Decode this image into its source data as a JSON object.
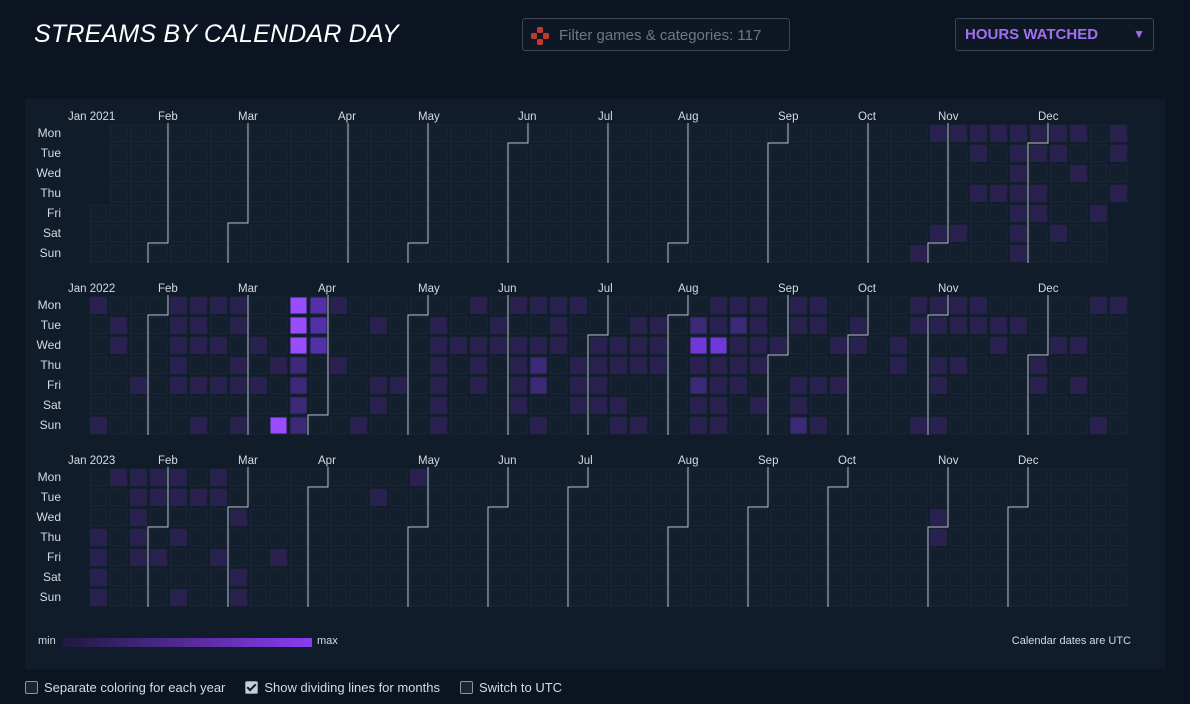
{
  "header": {
    "title": "STREAMS BY CALENDAR DAY",
    "filter_placeholder": "Filter games & categories: 117",
    "metric_select": "HOURS WATCHED",
    "filter_icon": "gamepad-icon"
  },
  "colors": {
    "empty": "#141f2d",
    "cell_border": "#1c2838",
    "scale_min": "#241c48",
    "scale_max": "#9a4cff",
    "accent": "#a070f0"
  },
  "chart_data": {
    "type": "heatmap",
    "title": "STREAMS BY CALENDAR DAY",
    "metric": "HOURS WATCHED",
    "value_scale": "levels 1 (min) to 5 (max), 0 = no stream",
    "weekdays": [
      "Mon",
      "Tue",
      "Wed",
      "Thu",
      "Fri",
      "Sat",
      "Sun"
    ],
    "years": [
      {
        "label": "2021",
        "months": [
          {
            "label": "Jan 2021",
            "week": 0
          },
          {
            "label": "Feb",
            "week": 4
          },
          {
            "label": "Mar",
            "week": 8
          },
          {
            "label": "Apr",
            "week": 13
          },
          {
            "label": "May",
            "week": 17
          },
          {
            "label": "Jun",
            "week": 22
          },
          {
            "label": "Jul",
            "week": 26
          },
          {
            "label": "Aug",
            "week": 30
          },
          {
            "label": "Sep",
            "week": 35
          },
          {
            "label": "Oct",
            "week": 39
          },
          {
            "label": "Nov",
            "week": 43
          },
          {
            "label": "Dec",
            "week": 48
          }
        ],
        "cells": [
          [
            42,
            0,
            1
          ],
          [
            43,
            0,
            1
          ],
          [
            44,
            0,
            1
          ],
          [
            45,
            0,
            1
          ],
          [
            46,
            0,
            1
          ],
          [
            47,
            0,
            1
          ],
          [
            48,
            0,
            1
          ],
          [
            49,
            0,
            1
          ],
          [
            51,
            0,
            1
          ],
          [
            44,
            1,
            1
          ],
          [
            46,
            1,
            1
          ],
          [
            47,
            1,
            1
          ],
          [
            48,
            1,
            1
          ],
          [
            51,
            1,
            1
          ],
          [
            46,
            2,
            1
          ],
          [
            49,
            2,
            1
          ],
          [
            44,
            3,
            1
          ],
          [
            45,
            3,
            1
          ],
          [
            46,
            3,
            1
          ],
          [
            47,
            3,
            1
          ],
          [
            51,
            3,
            1
          ],
          [
            46,
            4,
            1
          ],
          [
            47,
            4,
            1
          ],
          [
            50,
            4,
            1
          ],
          [
            42,
            5,
            1
          ],
          [
            43,
            5,
            1
          ],
          [
            46,
            5,
            1
          ],
          [
            48,
            5,
            1
          ],
          [
            41,
            6,
            1
          ],
          [
            46,
            6,
            1
          ]
        ]
      },
      {
        "label": "2022",
        "months": [
          {
            "label": "Jan 2022",
            "week": 0
          },
          {
            "label": "Feb",
            "week": 4
          },
          {
            "label": "Mar",
            "week": 8
          },
          {
            "label": "Apr",
            "week": 12
          },
          {
            "label": "May",
            "week": 17
          },
          {
            "label": "Jun",
            "week": 21
          },
          {
            "label": "Jul",
            "week": 26
          },
          {
            "label": "Aug",
            "week": 30
          },
          {
            "label": "Sep",
            "week": 35
          },
          {
            "label": "Oct",
            "week": 39
          },
          {
            "label": "Nov",
            "week": 43
          },
          {
            "label": "Dec",
            "week": 48
          }
        ],
        "cells": [
          [
            0,
            0,
            1
          ],
          [
            4,
            0,
            1
          ],
          [
            5,
            0,
            1
          ],
          [
            6,
            0,
            1
          ],
          [
            7,
            0,
            1
          ],
          [
            10,
            0,
            5
          ],
          [
            11,
            0,
            3
          ],
          [
            12,
            0,
            1
          ],
          [
            19,
            0,
            1
          ],
          [
            21,
            0,
            1
          ],
          [
            22,
            0,
            1
          ],
          [
            23,
            0,
            1
          ],
          [
            24,
            0,
            1
          ],
          [
            31,
            0,
            1
          ],
          [
            32,
            0,
            1
          ],
          [
            33,
            0,
            1
          ],
          [
            35,
            0,
            1
          ],
          [
            36,
            0,
            1
          ],
          [
            41,
            0,
            1
          ],
          [
            42,
            0,
            1
          ],
          [
            43,
            0,
            1
          ],
          [
            44,
            0,
            1
          ],
          [
            50,
            0,
            1
          ],
          [
            51,
            0,
            1
          ],
          [
            1,
            1,
            1
          ],
          [
            4,
            1,
            1
          ],
          [
            5,
            1,
            1
          ],
          [
            7,
            1,
            1
          ],
          [
            10,
            1,
            5
          ],
          [
            11,
            1,
            3
          ],
          [
            14,
            1,
            1
          ],
          [
            17,
            1,
            1
          ],
          [
            20,
            1,
            1
          ],
          [
            23,
            1,
            1
          ],
          [
            27,
            1,
            1
          ],
          [
            28,
            1,
            1
          ],
          [
            30,
            1,
            2
          ],
          [
            31,
            1,
            1
          ],
          [
            32,
            1,
            2
          ],
          [
            33,
            1,
            1
          ],
          [
            35,
            1,
            1
          ],
          [
            36,
            1,
            1
          ],
          [
            38,
            1,
            1
          ],
          [
            41,
            1,
            1
          ],
          [
            42,
            1,
            1
          ],
          [
            43,
            1,
            1
          ],
          [
            44,
            1,
            1
          ],
          [
            45,
            1,
            1
          ],
          [
            46,
            1,
            1
          ],
          [
            1,
            2,
            1
          ],
          [
            4,
            2,
            1
          ],
          [
            5,
            2,
            1
          ],
          [
            6,
            2,
            1
          ],
          [
            8,
            2,
            1
          ],
          [
            10,
            2,
            5
          ],
          [
            11,
            2,
            3
          ],
          [
            17,
            2,
            1
          ],
          [
            18,
            2,
            1
          ],
          [
            19,
            2,
            1
          ],
          [
            20,
            2,
            1
          ],
          [
            21,
            2,
            1
          ],
          [
            22,
            2,
            1
          ],
          [
            23,
            2,
            1
          ],
          [
            25,
            2,
            1
          ],
          [
            26,
            2,
            1
          ],
          [
            27,
            2,
            1
          ],
          [
            28,
            2,
            1
          ],
          [
            30,
            2,
            4
          ],
          [
            31,
            2,
            4
          ],
          [
            32,
            2,
            1
          ],
          [
            33,
            2,
            1
          ],
          [
            34,
            2,
            1
          ],
          [
            37,
            2,
            1
          ],
          [
            38,
            2,
            1
          ],
          [
            40,
            2,
            1
          ],
          [
            45,
            2,
            1
          ],
          [
            48,
            2,
            1
          ],
          [
            49,
            2,
            1
          ],
          [
            4,
            3,
            1
          ],
          [
            7,
            3,
            1
          ],
          [
            9,
            3,
            1
          ],
          [
            10,
            3,
            2
          ],
          [
            12,
            3,
            1
          ],
          [
            17,
            3,
            1
          ],
          [
            19,
            3,
            1
          ],
          [
            21,
            3,
            1
          ],
          [
            22,
            3,
            2
          ],
          [
            24,
            3,
            1
          ],
          [
            25,
            3,
            1
          ],
          [
            26,
            3,
            1
          ],
          [
            27,
            3,
            1
          ],
          [
            28,
            3,
            1
          ],
          [
            30,
            3,
            1
          ],
          [
            31,
            3,
            1
          ],
          [
            32,
            3,
            1
          ],
          [
            33,
            3,
            1
          ],
          [
            40,
            3,
            1
          ],
          [
            42,
            3,
            1
          ],
          [
            43,
            3,
            1
          ],
          [
            47,
            3,
            1
          ],
          [
            2,
            4,
            1
          ],
          [
            4,
            4,
            1
          ],
          [
            5,
            4,
            1
          ],
          [
            6,
            4,
            1
          ],
          [
            7,
            4,
            1
          ],
          [
            8,
            4,
            1
          ],
          [
            10,
            4,
            2
          ],
          [
            14,
            4,
            1
          ],
          [
            15,
            4,
            1
          ],
          [
            17,
            4,
            1
          ],
          [
            19,
            4,
            1
          ],
          [
            21,
            4,
            1
          ],
          [
            22,
            4,
            2
          ],
          [
            24,
            4,
            1
          ],
          [
            25,
            4,
            1
          ],
          [
            30,
            4,
            2
          ],
          [
            31,
            4,
            1
          ],
          [
            32,
            4,
            1
          ],
          [
            35,
            4,
            1
          ],
          [
            36,
            4,
            1
          ],
          [
            37,
            4,
            1
          ],
          [
            42,
            4,
            1
          ],
          [
            47,
            4,
            1
          ],
          [
            49,
            4,
            1
          ],
          [
            10,
            5,
            2
          ],
          [
            14,
            5,
            1
          ],
          [
            17,
            5,
            1
          ],
          [
            21,
            5,
            1
          ],
          [
            24,
            5,
            1
          ],
          [
            25,
            5,
            1
          ],
          [
            26,
            5,
            1
          ],
          [
            30,
            5,
            1
          ],
          [
            31,
            5,
            1
          ],
          [
            33,
            5,
            1
          ],
          [
            35,
            5,
            1
          ],
          [
            0,
            6,
            1
          ],
          [
            5,
            6,
            1
          ],
          [
            7,
            6,
            1
          ],
          [
            9,
            6,
            5
          ],
          [
            10,
            6,
            2
          ],
          [
            13,
            6,
            1
          ],
          [
            17,
            6,
            1
          ],
          [
            22,
            6,
            1
          ],
          [
            26,
            6,
            1
          ],
          [
            27,
            6,
            1
          ],
          [
            30,
            6,
            1
          ],
          [
            31,
            6,
            1
          ],
          [
            35,
            6,
            2
          ],
          [
            36,
            6,
            1
          ],
          [
            41,
            6,
            1
          ],
          [
            42,
            6,
            1
          ],
          [
            50,
            6,
            1
          ]
        ]
      },
      {
        "label": "2023",
        "months": [
          {
            "label": "Jan 2023",
            "week": 0
          },
          {
            "label": "Feb",
            "week": 4
          },
          {
            "label": "Mar",
            "week": 8
          },
          {
            "label": "Apr",
            "week": 12
          },
          {
            "label": "May",
            "week": 17
          },
          {
            "label": "Jun",
            "week": 21
          },
          {
            "label": "Jul",
            "week": 25
          },
          {
            "label": "Aug",
            "week": 30
          },
          {
            "label": "Sep",
            "week": 34
          },
          {
            "label": "Oct",
            "week": 38
          },
          {
            "label": "Nov",
            "week": 43
          },
          {
            "label": "Dec",
            "week": 47
          }
        ],
        "cells": [
          [
            1,
            0,
            1
          ],
          [
            2,
            0,
            1
          ],
          [
            3,
            0,
            1
          ],
          [
            4,
            0,
            1
          ],
          [
            6,
            0,
            1
          ],
          [
            16,
            0,
            1
          ],
          [
            2,
            1,
            1
          ],
          [
            3,
            1,
            1
          ],
          [
            4,
            1,
            1
          ],
          [
            5,
            1,
            1
          ],
          [
            6,
            1,
            1
          ],
          [
            14,
            1,
            1
          ],
          [
            2,
            2,
            1
          ],
          [
            7,
            2,
            1
          ],
          [
            42,
            2,
            1
          ],
          [
            0,
            3,
            1
          ],
          [
            2,
            3,
            1
          ],
          [
            4,
            3,
            1
          ],
          [
            42,
            3,
            1
          ],
          [
            0,
            4,
            1
          ],
          [
            2,
            4,
            1
          ],
          [
            3,
            4,
            1
          ],
          [
            6,
            4,
            1
          ],
          [
            9,
            4,
            1
          ],
          [
            0,
            5,
            1
          ],
          [
            7,
            5,
            1
          ],
          [
            0,
            6,
            1
          ],
          [
            4,
            6,
            1
          ],
          [
            7,
            6,
            1
          ]
        ]
      }
    ]
  },
  "legend": {
    "min_label": "min",
    "max_label": "max",
    "note": "Calendar dates are UTC"
  },
  "options": [
    {
      "label": "Separate coloring for each year",
      "checked": false
    },
    {
      "label": "Show dividing lines for months",
      "checked": true
    },
    {
      "label": "Switch to UTC",
      "checked": false
    }
  ]
}
